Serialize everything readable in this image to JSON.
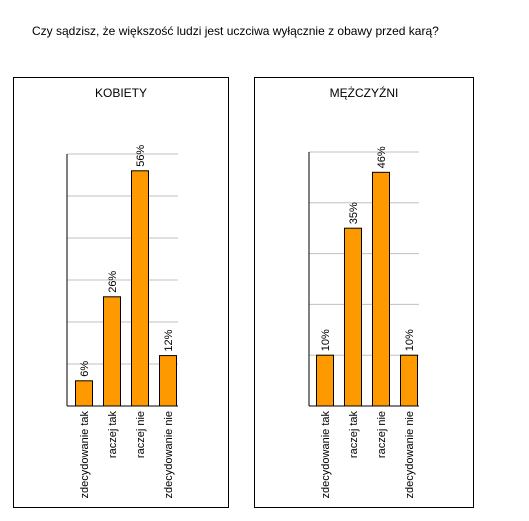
{
  "question": "Czy sądzisz, że większość ludzi jest uczciwa wyłącznie z obawy przed karą?",
  "colors": {
    "bar": "#FF9900",
    "bar_stroke": "#000000",
    "grid": "#C0C0C0",
    "axis": "#000000"
  },
  "chart_data": [
    {
      "type": "bar",
      "title": "KOBIETY",
      "categories": [
        "zdecydowanie tak",
        "raczej tak",
        "raczej nie",
        "zdecydowanie nie"
      ],
      "values": [
        6,
        26,
        56,
        12
      ],
      "data_labels": [
        "6%",
        "26%",
        "56%",
        "12%"
      ],
      "ylim": [
        0,
        60
      ],
      "grid": true,
      "xlabel": "",
      "ylabel": ""
    },
    {
      "type": "bar",
      "title": "MĘŻCZYŹNI",
      "categories": [
        "zdecydowanie tak",
        "raczej tak",
        "raczej nie",
        "zdecydowanie nie"
      ],
      "values": [
        10,
        35,
        46,
        10
      ],
      "data_labels": [
        "10%",
        "35%",
        "46%",
        "10%"
      ],
      "ylim": [
        0,
        50
      ],
      "grid": true,
      "xlabel": "",
      "ylabel": ""
    }
  ]
}
